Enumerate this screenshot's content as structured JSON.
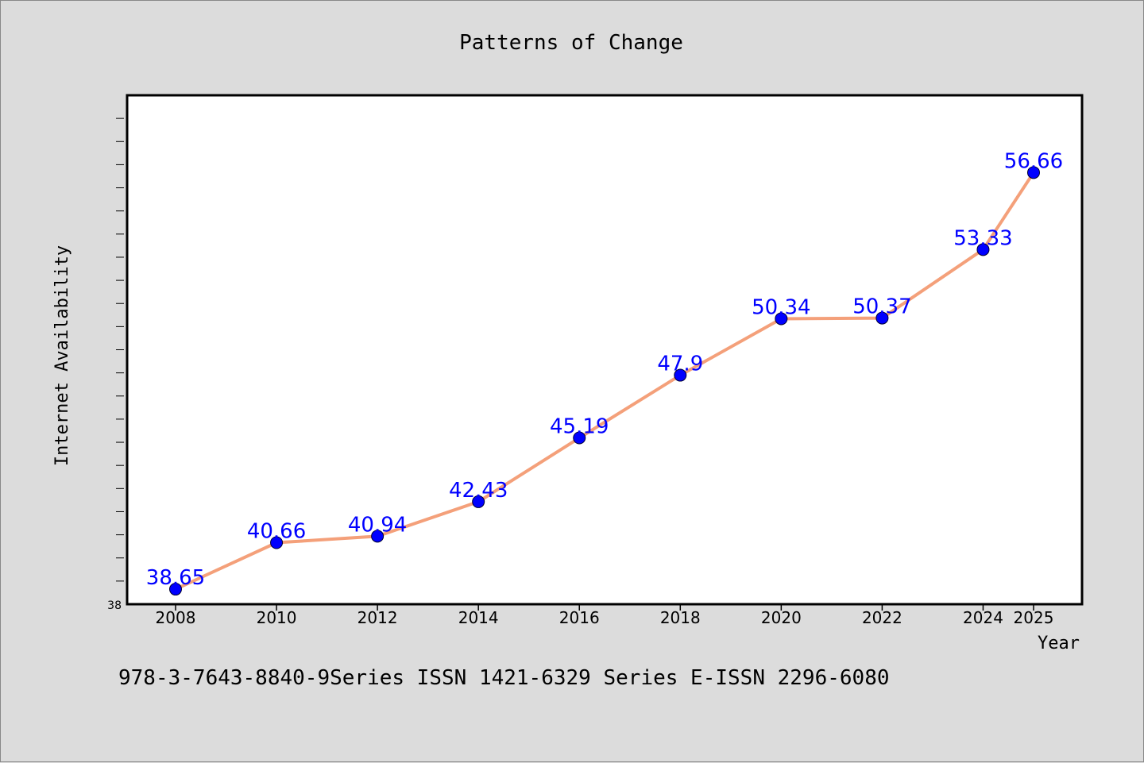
{
  "chart_data": {
    "type": "line",
    "title": "Patterns of Change",
    "xlabel": "Year",
    "ylabel": "Internet Availability",
    "x": [
      "2008",
      "2010",
      "2012",
      "2014",
      "2016",
      "2018",
      "2020",
      "2022",
      "2024",
      "2025"
    ],
    "series": [
      {
        "values": [
          38.65,
          40.66,
          40.94,
          42.43,
          45.19,
          47.9,
          50.34,
          50.37,
          53.33,
          56.66
        ],
        "data_labels": [
          "38.65",
          "40.66",
          "40.94",
          "42.43",
          "45.19",
          "47.9",
          "50.34",
          "50.37",
          "53.33",
          "56.66"
        ]
      }
    ],
    "ylim": [
      38,
      60
    ],
    "y_tick_labels": [
      "38"
    ],
    "grid": false,
    "colors": {
      "line": "#f4a07a",
      "marker": "#0000ff",
      "label": "#0000ff",
      "plot_bg": "#ffffff",
      "page_bg": "#dcdcdc"
    }
  },
  "footer": {
    "text": "978-3-7643-8840-9Series ISSN 1421-6329 Series E-ISSN 2296-6080"
  }
}
